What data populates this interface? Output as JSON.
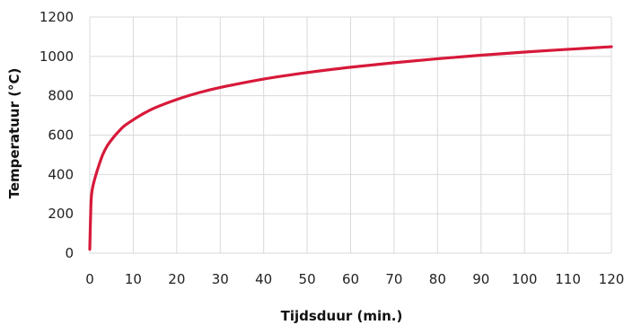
{
  "chart_data": {
    "type": "line",
    "xlabel": "Tijdsduur (min.)",
    "ylabel": "Temperatuur (°C)",
    "xlim": [
      0,
      120
    ],
    "ylim": [
      0,
      1200
    ],
    "x_ticks": [
      "0",
      "10",
      "20",
      "30",
      "40",
      "50",
      "60",
      "70",
      "80",
      "90",
      "100",
      "110",
      "120"
    ],
    "y_ticks": [
      "0",
      "200",
      "400",
      "600",
      "800",
      "1000",
      "1200"
    ],
    "grid": true,
    "line_color": "#d7193a",
    "series": [
      {
        "x": [
          0,
          0.25,
          0.5,
          1,
          2,
          3,
          4,
          5,
          6,
          7,
          8,
          10,
          12,
          15,
          20,
          25,
          30,
          40,
          50,
          60,
          70,
          80,
          90,
          100,
          110,
          120
        ],
        "y": [
          20,
          240,
          314,
          366,
          440,
          502,
          545,
          576,
          603,
          627,
          648,
          678,
          705,
          739,
          781,
          815,
          842,
          885,
          918,
          945,
          968,
          988,
          1006,
          1022,
          1036,
          1049
        ]
      }
    ]
  }
}
